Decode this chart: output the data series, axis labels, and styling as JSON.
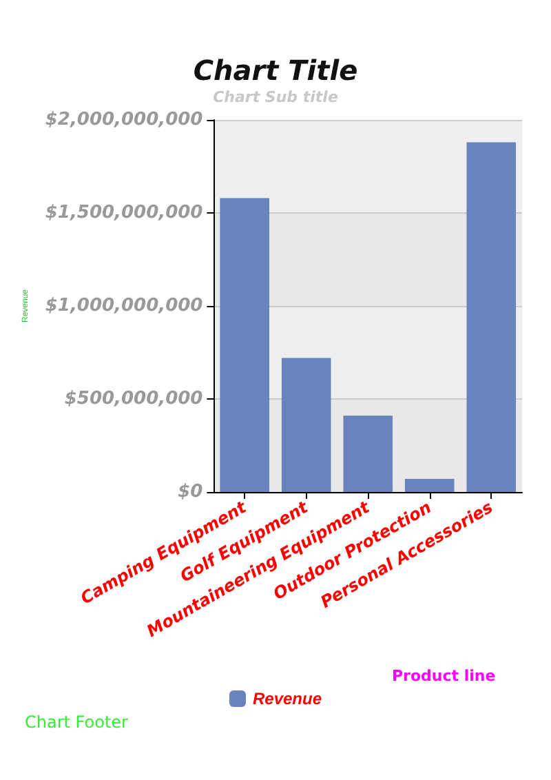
{
  "chart_data": {
    "type": "bar",
    "title": "Chart Title",
    "subtitle": "Chart Sub title",
    "xlabel": "Product line",
    "ylabel": "Revenue",
    "categories": [
      "Camping Equipment",
      "Golf Equipment",
      "Mountaineering Equipment",
      "Outdoor Protection",
      "Personal Accessories"
    ],
    "series": [
      {
        "name": "Revenue",
        "color": "#6a83bd",
        "values": [
          1580000000,
          720000000,
          410000000,
          70000000,
          1880000000
        ]
      }
    ],
    "ylim": [
      0,
      2000000000
    ],
    "yticks": [
      {
        "value": 0,
        "label": "$0"
      },
      {
        "value": 500000000,
        "label": "$500,000,000"
      },
      {
        "value": 1000000000,
        "label": "$1,000,000,000"
      },
      {
        "value": 1500000000,
        "label": "$1,500,000,000"
      },
      {
        "value": 2000000000,
        "label": "$2,000,000,000"
      }
    ],
    "grid": "y",
    "legend": "bottom",
    "annotations": [
      "Chart Footer"
    ]
  }
}
